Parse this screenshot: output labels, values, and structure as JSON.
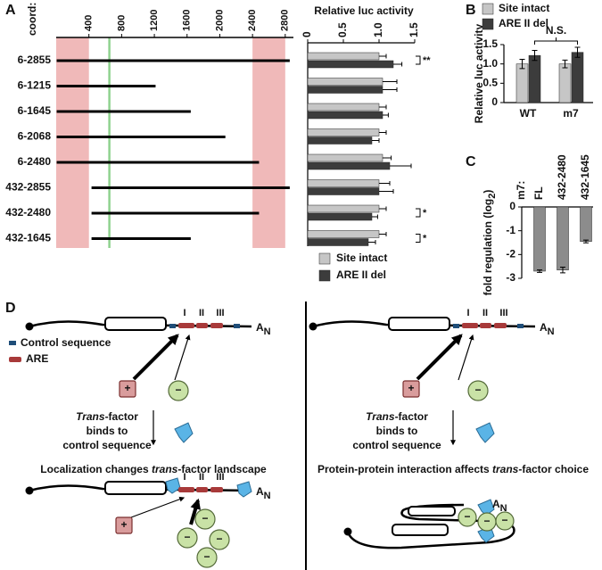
{
  "chart_data": [
    {
      "type": "interval",
      "panel": "A",
      "x_label": "coord:",
      "categories": [
        "6-2855",
        "6-1215",
        "6-1645",
        "6-2068",
        "6-2480",
        "432-2855",
        "432-2480",
        "432-1645"
      ],
      "start": [
        6,
        6,
        6,
        6,
        6,
        432,
        432,
        432
      ],
      "end": [
        2855,
        1215,
        1645,
        2068,
        2480,
        2855,
        2480,
        1645
      ],
      "color": "#000000",
      "shaded": [
        [
          0,
          400
        ],
        [
          2400,
          2800
        ]
      ],
      "shade_color": "#f0b9b9",
      "marker": 650,
      "marker_color": "#8fd28f",
      "xlim": [
        0,
        2900
      ],
      "xticks": [
        400,
        800,
        1200,
        1600,
        2000,
        2400,
        2800
      ]
    },
    {
      "type": "hbar",
      "title": "Relative luc activity",
      "series": [
        {
          "name": "Site intact",
          "color": "#c6c6c6",
          "values": [
            1.0,
            1.05,
            1.0,
            1.0,
            1.05,
            1.0,
            1.0,
            1.0
          ],
          "errors": [
            0.1,
            0.2,
            0.1,
            0.1,
            0.12,
            0.15,
            0.1,
            0.1
          ]
        },
        {
          "name": "ARE II del",
          "color": "#3c3c3c",
          "values": [
            1.2,
            1.05,
            1.05,
            0.9,
            1.15,
            1.0,
            0.9,
            0.85
          ],
          "errors": [
            0.12,
            0.2,
            0.08,
            0.1,
            0.3,
            0.2,
            0.08,
            0.1
          ]
        }
      ],
      "significance": [
        "**",
        null,
        null,
        null,
        null,
        null,
        "*",
        "*"
      ],
      "xlim": [
        0,
        1.5
      ],
      "xticks": [
        0,
        0.5,
        {
          "value": 1,
          "label": "1.0"
        },
        1.5
      ]
    },
    {
      "type": "bar",
      "panel": "B",
      "y_label": "Relative luc activity",
      "categories": [
        "WT",
        "m7"
      ],
      "series": [
        {
          "name": "Site intact",
          "color": "#c6c6c6",
          "values": [
            1.0,
            1.0
          ],
          "errors": [
            0.12,
            0.1
          ]
        },
        {
          "name": "ARE II del",
          "color": "#3c3c3c",
          "values": [
            1.22,
            1.3
          ],
          "errors": [
            0.13,
            0.13
          ]
        }
      ],
      "annotation": "N.S.",
      "ylim": [
        0,
        1.5
      ],
      "yticks": [
        0,
        0.5,
        {
          "value": 1,
          "label": "1.0"
        },
        1.5
      ]
    },
    {
      "type": "bar",
      "panel": "C",
      "header": "m7:",
      "y_label": [
        "fold regulation (log",
        "2",
        ")"
      ],
      "categories": [
        "FL",
        "432-2480",
        "432-1645"
      ],
      "series": [
        {
          "color": "#8c8c8c",
          "values": [
            -2.7,
            -2.65,
            -1.45
          ],
          "errors": [
            0.05,
            0.12,
            0.06
          ]
        }
      ],
      "ylim": [
        -3,
        0
      ],
      "yticks": [
        -3,
        -2,
        -1,
        0
      ]
    }
  ],
  "diagram": {
    "label": "D",
    "legend": [
      "Control sequence",
      "ARE"
    ],
    "sites": [
      "I",
      "II",
      "III"
    ],
    "poly_a": [
      "A",
      "N"
    ],
    "plus": "+",
    "minus": "−",
    "left": {
      "step": [
        "Trans",
        "-factor",
        "binds to",
        "control sequence"
      ],
      "title": [
        "Localization changes ",
        "trans",
        "-factor landscape"
      ]
    },
    "right": {
      "step": [
        "Trans",
        "-factor",
        "binds to",
        "control sequence"
      ],
      "title": [
        "Protein-protein interaction affects ",
        "trans",
        "-factor choice"
      ]
    }
  }
}
